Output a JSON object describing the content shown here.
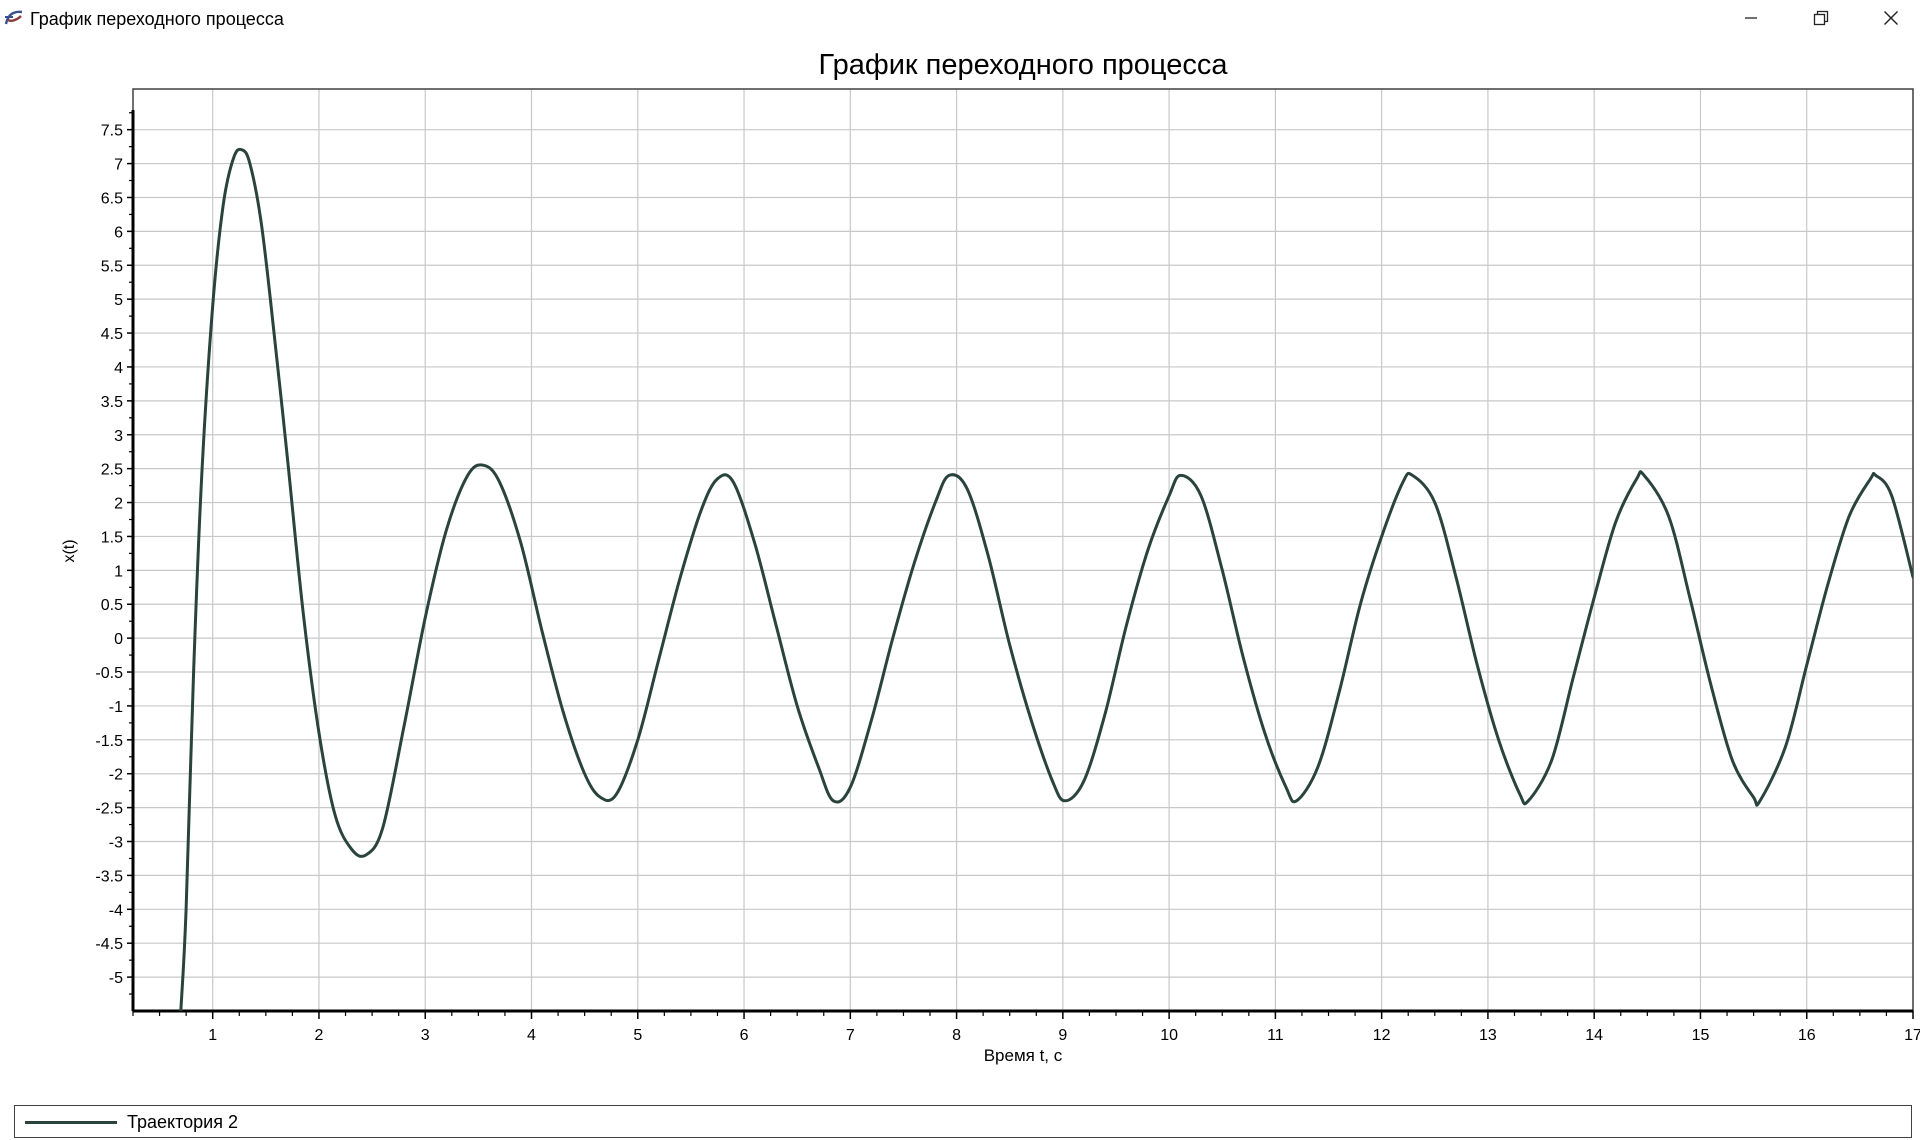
{
  "window": {
    "title": "График переходного процесса",
    "icon": "app-logo-icon",
    "buttons": {
      "minimize": "minimize-icon",
      "maximize": "restore-icon",
      "close": "close-icon"
    }
  },
  "chart_data": {
    "type": "line",
    "title": "График переходного процесса",
    "xlabel": "Время t, c",
    "ylabel": "x(t)",
    "xlim": [
      0.25,
      17
    ],
    "ylim": [
      -5.5,
      8.1
    ],
    "xticks": [
      1,
      2,
      3,
      4,
      5,
      6,
      7,
      8,
      9,
      10,
      11,
      12,
      13,
      14,
      15,
      16,
      17
    ],
    "yticks": [
      7.5,
      7,
      6.5,
      6,
      5.5,
      5,
      4.5,
      4,
      3.5,
      3,
      2.5,
      2,
      1.5,
      1,
      0.5,
      0,
      -0.5,
      -1,
      -1.5,
      -2,
      -2.5,
      -3,
      -3.5,
      -4,
      -4.5,
      -5
    ],
    "grid": true,
    "legend_position": "bottom",
    "series": [
      {
        "name": "Траектория 2",
        "color": "#2a433c",
        "x": [
          0.7,
          0.75,
          0.82,
          0.9,
          1.0,
          1.1,
          1.2,
          1.28,
          1.35,
          1.45,
          1.55,
          1.7,
          1.85,
          2.0,
          2.15,
          2.3,
          2.44,
          2.6,
          2.8,
          3.0,
          3.2,
          3.4,
          3.55,
          3.7,
          3.9,
          4.1,
          4.3,
          4.5,
          4.65,
          4.8,
          5.0,
          5.2,
          5.4,
          5.6,
          5.75,
          5.9,
          6.1,
          6.3,
          6.5,
          6.7,
          6.84,
          7.0,
          7.2,
          7.4,
          7.6,
          7.8,
          7.93,
          8.1,
          8.3,
          8.5,
          8.7,
          8.9,
          9.02,
          9.2,
          9.4,
          9.6,
          9.8,
          10.0,
          10.11,
          10.3,
          10.5,
          10.7,
          10.9,
          11.1,
          11.2,
          11.4,
          11.6,
          11.8,
          12.0,
          12.2,
          12.29,
          12.5,
          12.7,
          12.9,
          13.1,
          13.3,
          13.38,
          13.6,
          13.8,
          14.0,
          14.2,
          14.4,
          14.47,
          14.7,
          14.9,
          15.1,
          15.3,
          15.5,
          15.56,
          15.8,
          16.0,
          16.2,
          16.4,
          16.6,
          16.65,
          16.8,
          17.0
        ],
        "values": [
          -5.5,
          -4.0,
          -0.5,
          2.5,
          4.9,
          6.4,
          7.1,
          7.2,
          7.0,
          6.2,
          4.9,
          2.7,
          0.4,
          -1.4,
          -2.6,
          -3.1,
          -3.2,
          -2.8,
          -1.3,
          0.3,
          1.6,
          2.4,
          2.55,
          2.3,
          1.4,
          0.1,
          -1.1,
          -2.0,
          -2.35,
          -2.3,
          -1.5,
          -0.3,
          0.9,
          1.9,
          2.35,
          2.3,
          1.4,
          0.2,
          -1.0,
          -1.9,
          -2.4,
          -2.2,
          -1.2,
          0.0,
          1.1,
          2.0,
          2.4,
          2.2,
          1.2,
          -0.1,
          -1.2,
          -2.1,
          -2.4,
          -2.1,
          -1.1,
          0.2,
          1.3,
          2.1,
          2.4,
          2.1,
          1.0,
          -0.3,
          -1.4,
          -2.2,
          -2.4,
          -1.9,
          -0.8,
          0.5,
          1.5,
          2.3,
          2.4,
          2.0,
          0.9,
          -0.4,
          -1.5,
          -2.3,
          -2.4,
          -1.8,
          -0.6,
          0.6,
          1.7,
          2.35,
          2.4,
          1.8,
          0.6,
          -0.7,
          -1.8,
          -2.35,
          -2.4,
          -1.6,
          -0.4,
          0.8,
          1.8,
          2.35,
          2.4,
          2.1,
          0.9
        ]
      }
    ]
  }
}
